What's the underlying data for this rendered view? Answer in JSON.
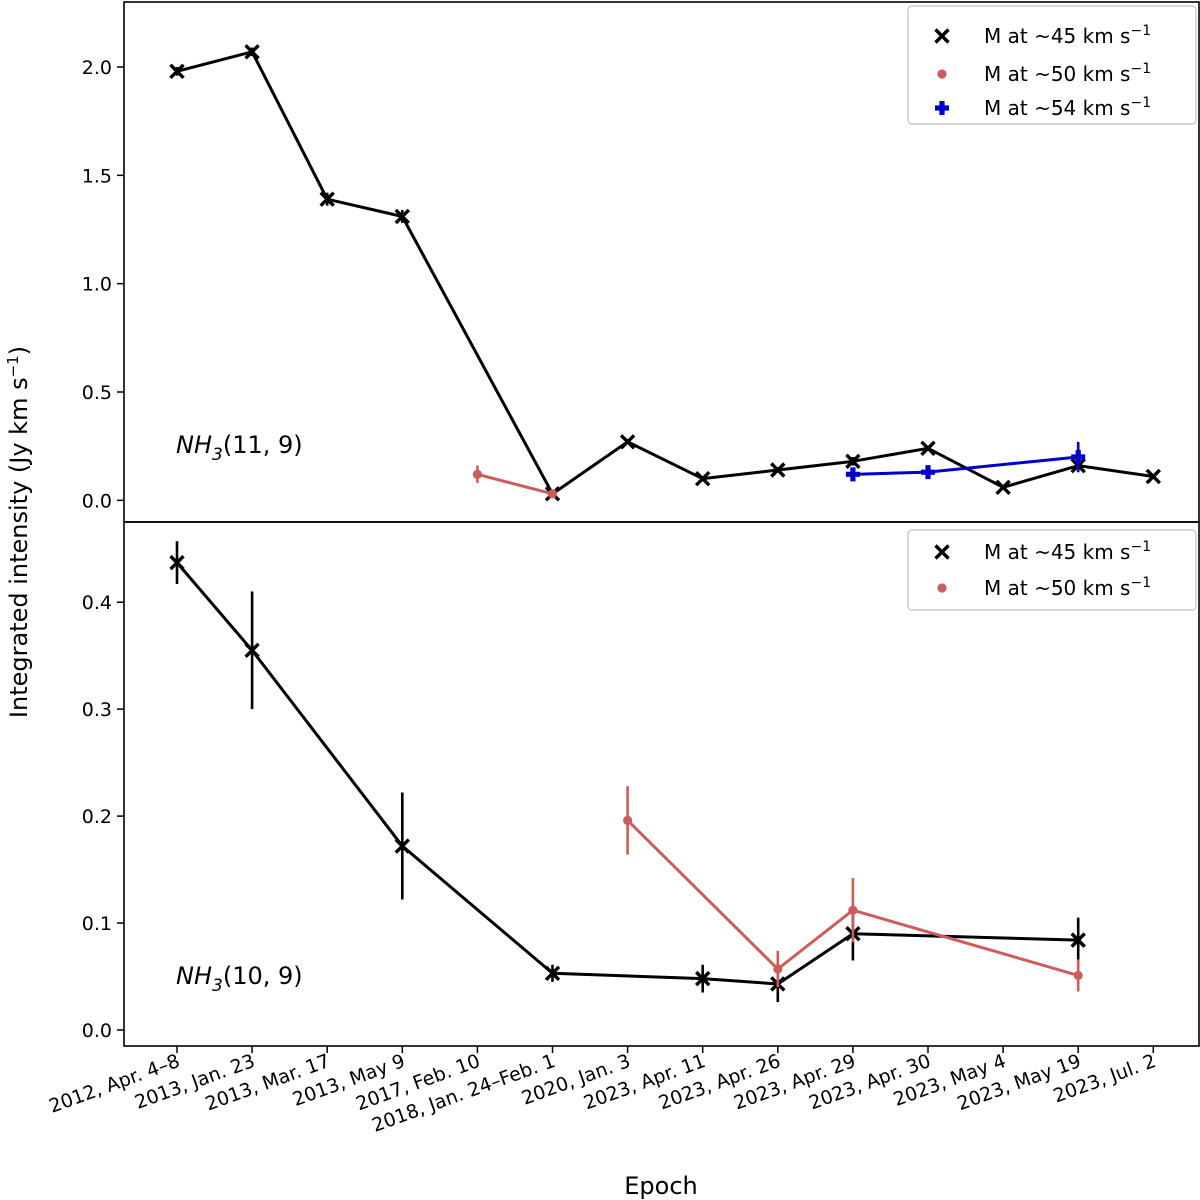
{
  "chart_data": {
    "type": "line",
    "xlabel": "Epoch",
    "ylabel": "Integrated intensity (Jy km s",
    "ylabel_sup": "−1",
    "ylabel_close": ")",
    "categories": [
      "2012, Apr. 4–8",
      "2013, Jan. 23",
      "2013, Mar. 17",
      "2013, May 9",
      "2017, Feb. 10",
      "2018, Jan. 24–Feb. 1",
      "2020, Jan. 3",
      "2023, Apr. 11",
      "2023, Apr. 26",
      "2023, Apr. 29",
      "2023, Apr. 30",
      "2023, May 4",
      "2023, May 19",
      "2023, Jul. 2"
    ],
    "panels": [
      {
        "annotation": "NH",
        "annotation_sub": "3",
        "annotation_rest": "(11, 9)",
        "ylim": [
          -0.1,
          2.3
        ],
        "yticks": [
          "0.0",
          "0.5",
          "1.0",
          "1.5",
          "2.0"
        ],
        "ytick_values": [
          0.0,
          0.5,
          1.0,
          1.5,
          2.0
        ],
        "series": [
          {
            "name": "M at ~45 km s",
            "name_sup": "−1",
            "color": "#000000",
            "marker": "x",
            "x": [
              0,
              1,
              2,
              3,
              5,
              6,
              7,
              8,
              9,
              10,
              11,
              12,
              13
            ],
            "values": [
              1.98,
              2.07,
              1.39,
              1.31,
              0.03,
              0.27,
              0.1,
              0.14,
              0.18,
              0.24,
              0.06,
              0.16,
              0.11
            ],
            "errors": [
              0.02,
              0.02,
              0.03,
              0.03,
              0.01,
              0.01,
              0.01,
              0.01,
              0.02,
              0.01,
              0.01,
              0.03,
              0.01
            ]
          },
          {
            "name": "M at ~50 km s",
            "name_sup": "−1",
            "color": "#cd5c5c",
            "marker": "o",
            "x": [
              4,
              5
            ],
            "values": [
              0.12,
              0.03
            ],
            "errors": [
              0.04,
              0.01
            ]
          },
          {
            "name": "M at ~54 km s",
            "name_sup": "−1",
            "color": "#0000cd",
            "marker": "P",
            "x": [
              9,
              10,
              12
            ],
            "values": [
              0.12,
              0.13,
              0.2
            ],
            "errors": [
              0.02,
              0.02,
              0.07
            ]
          }
        ]
      },
      {
        "annotation": "NH",
        "annotation_sub": "3",
        "annotation_rest": "(10, 9)",
        "ylim": [
          -0.015,
          0.475
        ],
        "yticks": [
          "0.0",
          "0.1",
          "0.2",
          "0.3",
          "0.4"
        ],
        "ytick_values": [
          0.0,
          0.1,
          0.2,
          0.3,
          0.4
        ],
        "series": [
          {
            "name": "M at ~45 km s",
            "name_sup": "−1",
            "color": "#000000",
            "marker": "x",
            "x": [
              0,
              1,
              3,
              5,
              7,
              8,
              9,
              12
            ],
            "values": [
              0.437,
              0.355,
              0.172,
              0.053,
              0.048,
              0.043,
              0.09,
              0.084
            ],
            "errors": [
              0.02,
              0.055,
              0.05,
              0.008,
              0.013,
              0.017,
              0.025,
              0.021
            ]
          },
          {
            "name": "M at ~50 km s",
            "name_sup": "−1",
            "color": "#cd5c5c",
            "marker": "o",
            "x": [
              6,
              8,
              9,
              12
            ],
            "values": [
              0.196,
              0.057,
              0.112,
              0.051
            ],
            "errors": [
              0.032,
              0.017,
              0.03,
              0.015
            ]
          }
        ]
      }
    ]
  }
}
